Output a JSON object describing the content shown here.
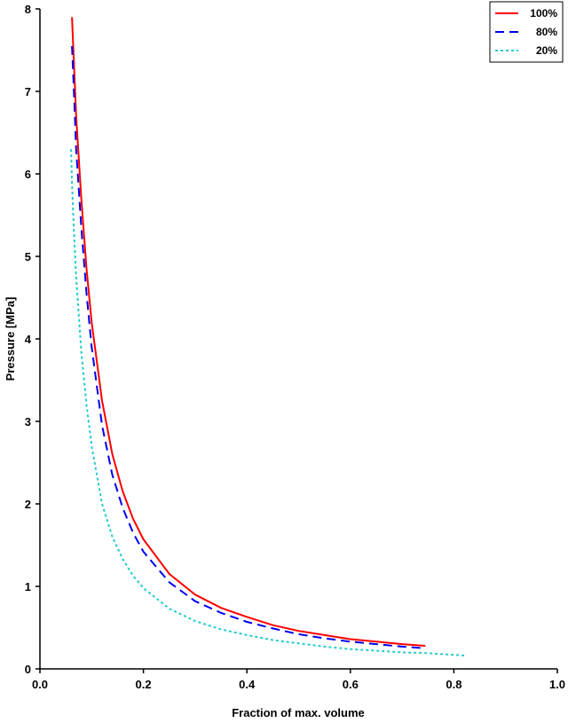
{
  "chart_data": {
    "type": "line",
    "title": "",
    "xlabel": "Fraction of max. volume",
    "ylabel": "Pressure [MPa]",
    "xlim": [
      0,
      1
    ],
    "ylim": [
      0,
      8
    ],
    "x_ticks": [
      "0.0",
      "0.2",
      "0.4",
      "0.6",
      "0.8",
      "1.0"
    ],
    "y_ticks": [
      "0",
      "1",
      "2",
      "3",
      "4",
      "5",
      "6",
      "7",
      "8"
    ],
    "grid": false,
    "legend_position": "top-right",
    "series": [
      {
        "name": "100%",
        "color": "#ff0000",
        "style": "solid",
        "x": [
          0.062,
          0.065,
          0.07,
          0.08,
          0.09,
          0.1,
          0.12,
          0.14,
          0.16,
          0.18,
          0.2,
          0.25,
          0.3,
          0.35,
          0.4,
          0.45,
          0.5,
          0.55,
          0.6,
          0.65,
          0.7,
          0.745
        ],
        "y": [
          7.9,
          7.45,
          6.7,
          5.7,
          4.85,
          4.2,
          3.25,
          2.6,
          2.15,
          1.82,
          1.57,
          1.15,
          0.9,
          0.74,
          0.63,
          0.53,
          0.46,
          0.41,
          0.36,
          0.33,
          0.3,
          0.28
        ]
      },
      {
        "name": "80%",
        "color": "#0000ee",
        "style": "dashed",
        "x": [
          0.062,
          0.065,
          0.07,
          0.08,
          0.09,
          0.1,
          0.12,
          0.14,
          0.16,
          0.18,
          0.2,
          0.25,
          0.3,
          0.35,
          0.4,
          0.45,
          0.5,
          0.55,
          0.6,
          0.65,
          0.7,
          0.745
        ],
        "y": [
          7.55,
          7.1,
          6.3,
          5.35,
          4.55,
          3.9,
          2.95,
          2.35,
          1.95,
          1.65,
          1.42,
          1.05,
          0.82,
          0.68,
          0.57,
          0.49,
          0.42,
          0.37,
          0.33,
          0.3,
          0.27,
          0.25
        ]
      },
      {
        "name": "20%",
        "color": "#22cccc",
        "style": "dotted",
        "x": [
          0.06,
          0.062,
          0.065,
          0.07,
          0.08,
          0.09,
          0.1,
          0.12,
          0.14,
          0.16,
          0.18,
          0.2,
          0.25,
          0.3,
          0.35,
          0.4,
          0.45,
          0.5,
          0.55,
          0.6,
          0.65,
          0.7,
          0.75,
          0.8,
          0.825
        ],
        "y": [
          6.3,
          5.9,
          5.4,
          4.75,
          3.85,
          3.2,
          2.7,
          2.0,
          1.6,
          1.33,
          1.13,
          0.98,
          0.73,
          0.58,
          0.48,
          0.41,
          0.35,
          0.31,
          0.27,
          0.24,
          0.22,
          0.2,
          0.19,
          0.17,
          0.16
        ]
      }
    ]
  }
}
